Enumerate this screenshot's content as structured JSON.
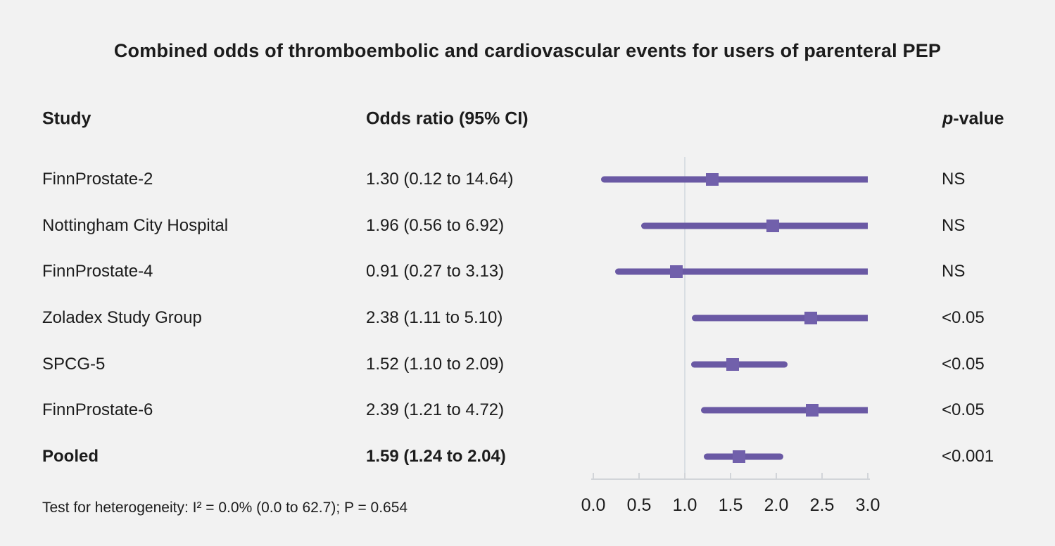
{
  "title": "Combined odds of thromboembolic and cardiovascular events for users of parenteral PEP",
  "columns": {
    "study": "Study",
    "odds_ratio": "Odds ratio (95% CI)",
    "p_prefix": "p",
    "p_suffix": "-value"
  },
  "footnote": "Test for heterogeneity: I² = 0.0% (0.0 to 62.7); P = 0.654",
  "chart_data": {
    "type": "scatter",
    "subtype": "forest-plot",
    "title": "Combined odds of thromboembolic and cardiovascular events for users of parenteral PEP",
    "xlabel": "Odds ratio",
    "xlim": [
      0.0,
      3.0
    ],
    "x_ticks": [
      "0.0",
      "0.5",
      "1.0",
      "1.5",
      "2.0",
      "2.5",
      "3.0"
    ],
    "reference_line_x": 1.0,
    "grid": false,
    "rows": [
      {
        "study": "FinnProstate-2",
        "or": 1.3,
        "ci_low": 0.12,
        "ci_high": 14.64,
        "or_label": "1.30 (0.12 to 14.64)",
        "p": "NS",
        "bold": false
      },
      {
        "study": "Nottingham City Hospital",
        "or": 1.96,
        "ci_low": 0.56,
        "ci_high": 6.92,
        "or_label": "1.96 (0.56 to 6.92)",
        "p": "NS",
        "bold": false
      },
      {
        "study": "FinnProstate-4",
        "or": 0.91,
        "ci_low": 0.27,
        "ci_high": 3.13,
        "or_label": "0.91 (0.27 to 3.13)",
        "p": "NS",
        "bold": false
      },
      {
        "study": "Zoladex Study Group",
        "or": 2.38,
        "ci_low": 1.11,
        "ci_high": 5.1,
        "or_label": "2.38 (1.11 to 5.10)",
        "p": "<0.05",
        "bold": false
      },
      {
        "study": "SPCG-5",
        "or": 1.52,
        "ci_low": 1.1,
        "ci_high": 2.09,
        "or_label": "1.52 (1.10 to 2.09)",
        "p": "<0.05",
        "bold": false
      },
      {
        "study": "FinnProstate-6",
        "or": 2.39,
        "ci_low": 1.21,
        "ci_high": 4.72,
        "or_label": "2.39 (1.21 to 4.72)",
        "p": "<0.05",
        "bold": false
      },
      {
        "study": "Pooled",
        "or": 1.59,
        "ci_low": 1.24,
        "ci_high": 2.04,
        "or_label": "1.59 (1.24 to 2.04)",
        "p": "<0.001",
        "bold": true
      }
    ],
    "colors": {
      "ci_line": "#6a59a4",
      "marker": "#7160ab",
      "reference_line": "#d9dee3",
      "axis": "#d2d5d9",
      "text": "#1c1c1c",
      "background": "#f2f2f2"
    }
  }
}
